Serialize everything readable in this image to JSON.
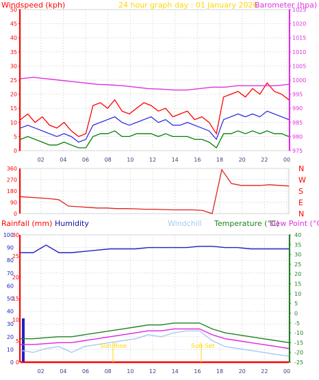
{
  "header": {
    "windspeed_label": "Windspeed (kph)",
    "date_label": "24 hour graph day : 01 January 2026",
    "barometer_label": "Barometer (hpa)"
  },
  "lower_header": {
    "rainfall_label": "Rainfall (mm)",
    "humidity_label": "Humidity",
    "windchill_label": "Windchill",
    "temperature_label": "Temperature (°C)",
    "dewpoint_label": "Dew Point (°C)"
  },
  "markers": {
    "sunrise_label": "Sun Rise",
    "sunset_label": "Sun Set"
  },
  "colors": {
    "windspeed": "#ff0000",
    "gust": "#ff0000",
    "avg": "#2020e0",
    "low": "#008000",
    "barometer": "#e030e0",
    "direction": "#e02020",
    "humidity": "#2020c0",
    "temperature": "#208020",
    "dewpoint": "#e020e0",
    "windchill": "#a8c8f0",
    "rain": "#ff0000",
    "title": "#ffd700"
  },
  "chart_data": [
    {
      "type": "line",
      "x_ticks": [
        "02",
        "04",
        "06",
        "08",
        "10",
        "12",
        "14",
        "16",
        "18",
        "20",
        "22",
        "00"
      ],
      "y_left_ticks": [
        "0",
        "5",
        "10",
        "15",
        "20",
        "25",
        "30",
        "35",
        "40",
        "45",
        "50"
      ],
      "y_right_ticks": [
        "975",
        "980",
        "985",
        "990",
        "995",
        "1000",
        "1005",
        "1010",
        "1015",
        "1020",
        "1025"
      ],
      "y_left_range": [
        0,
        50
      ],
      "y_right_range": [
        975,
        1025
      ],
      "series": [
        {
          "name": "Windspeed (kph)",
          "axis": "left",
          "values": [
            11,
            13,
            10,
            12,
            9,
            8,
            10,
            7,
            5,
            6,
            16,
            17,
            15,
            18,
            14,
            13,
            15,
            17,
            16,
            14,
            15,
            12,
            13,
            14,
            11,
            12,
            10,
            6,
            19,
            20,
            21,
            19,
            22,
            20,
            24,
            21,
            20,
            18
          ]
        },
        {
          "name": "Windspeed avg",
          "axis": "left",
          "values": [
            8,
            9,
            8,
            7,
            6,
            5,
            6,
            5,
            3,
            4,
            9,
            10,
            11,
            12,
            10,
            9,
            10,
            11,
            12,
            10,
            11,
            9,
            9,
            10,
            9,
            8,
            7,
            4,
            11,
            12,
            13,
            12,
            13,
            12,
            14,
            13,
            12,
            11
          ]
        },
        {
          "name": "Windspeed low",
          "axis": "left",
          "values": [
            4,
            5,
            4,
            3,
            2,
            2,
            3,
            2,
            1,
            1,
            5,
            6,
            6,
            7,
            5,
            5,
            6,
            6,
            6,
            5,
            6,
            5,
            5,
            5,
            4,
            4,
            3,
            1,
            6,
            6,
            7,
            6,
            7,
            6,
            7,
            6,
            6,
            5
          ]
        },
        {
          "name": "Barometer (hpa)",
          "axis": "right",
          "values": [
            1000.5,
            1001,
            1000.5,
            1000,
            999.5,
            999,
            998.5,
            998.3,
            998,
            997.5,
            997,
            996.8,
            996.5,
            996.5,
            997,
            997.5,
            997.5,
            998,
            998,
            998,
            998,
            998.5
          ]
        }
      ]
    },
    {
      "type": "line",
      "x_ticks": [
        "02",
        "04",
        "06",
        "08",
        "10",
        "12",
        "14",
        "16",
        "18",
        "20",
        "22",
        "00"
      ],
      "y_left_ticks": [
        "0",
        "90",
        "180",
        "270",
        "360"
      ],
      "y_right_ticks": [
        "N",
        "E",
        "S",
        "W",
        "N"
      ],
      "y_range": [
        0,
        360
      ],
      "series": [
        {
          "name": "Wind direction",
          "values": [
            135,
            130,
            125,
            120,
            110,
            60,
            55,
            50,
            45,
            45,
            40,
            40,
            38,
            35,
            35,
            32,
            30,
            30,
            30,
            25,
            0,
            350,
            240,
            225,
            225,
            225,
            230,
            225,
            220
          ]
        }
      ]
    },
    {
      "type": "line",
      "x_ticks": [
        "02",
        "04",
        "06",
        "08",
        "10",
        "12",
        "14",
        "16",
        "18",
        "20",
        "22",
        "00"
      ],
      "y_left_ticks": [
        "0",
        "5",
        "10",
        "15",
        "20",
        "25",
        "30"
      ],
      "y_humidity_ticks": [
        "0",
        "10",
        "20",
        "30",
        "40",
        "50",
        "60",
        "70",
        "80",
        "90",
        "100"
      ],
      "y_right_ticks": [
        "40",
        "35",
        "30",
        "25",
        "20",
        "15",
        "10",
        "5",
        "0",
        "-5",
        "-10",
        "-15",
        "-20",
        "-25"
      ],
      "y_temp_range": [
        -25,
        40
      ],
      "series": [
        {
          "name": "Humidity",
          "axis": "humidity",
          "values": [
            86,
            86,
            92,
            86,
            86,
            87,
            88,
            89,
            89,
            89,
            90,
            90,
            90,
            90,
            91,
            91,
            90,
            90,
            89,
            89,
            89,
            89
          ]
        },
        {
          "name": "Temperature (°C)",
          "axis": "temp",
          "values": [
            -13,
            -13,
            -12.5,
            -12,
            -12,
            -11,
            -10,
            -9,
            -8,
            -7,
            -6,
            -6,
            -5,
            -5,
            -5,
            -8,
            -10,
            -11,
            -12,
            -13,
            -14,
            -15
          ]
        },
        {
          "name": "Dew Point (°C)",
          "axis": "temp",
          "values": [
            -16,
            -16,
            -15.5,
            -15,
            -15,
            -14,
            -13,
            -12,
            -11,
            -10,
            -9,
            -9,
            -8,
            -8,
            -8,
            -11,
            -13,
            -14,
            -15,
            -16,
            -17,
            -18
          ]
        },
        {
          "name": "Windchill",
          "axis": "temp",
          "values": [
            -19,
            -20,
            -18,
            -17,
            -20,
            -17,
            -16,
            -15,
            -14,
            -13,
            -11,
            -12,
            -10,
            -9,
            -9,
            -14,
            -17,
            -18,
            -19,
            -20,
            -21,
            -22
          ]
        },
        {
          "name": "Rainfall (mm)",
          "axis": "rain",
          "values": [
            0,
            0,
            0,
            0,
            0,
            0,
            0,
            0,
            0,
            0,
            0,
            0,
            0,
            0,
            0,
            0,
            0,
            0,
            0,
            0,
            0,
            0
          ]
        }
      ]
    }
  ]
}
